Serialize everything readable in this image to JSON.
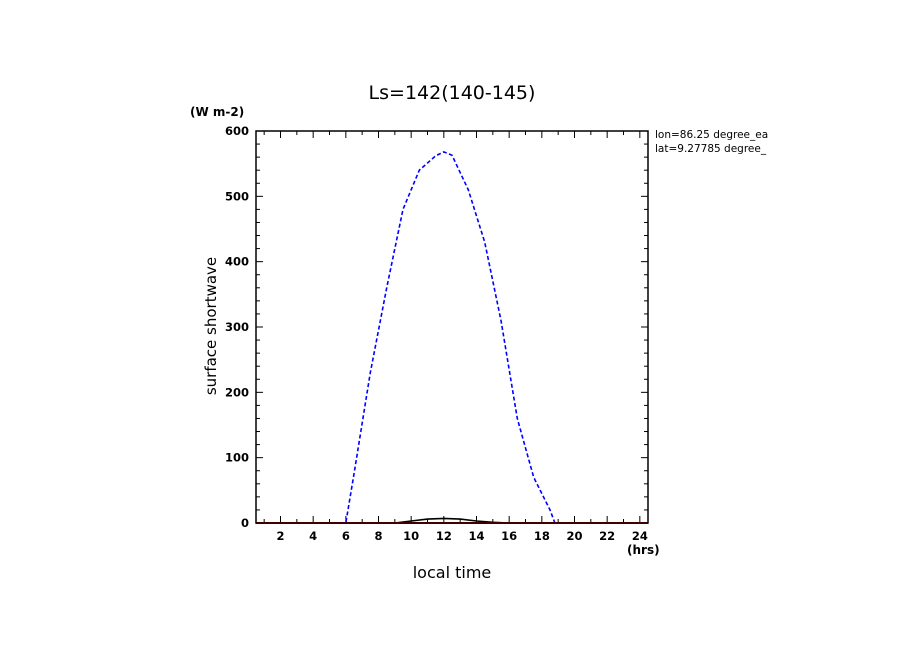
{
  "chart_data": {
    "type": "line",
    "title": "Ls=142(140-145)",
    "xlabel": "local time",
    "xunit": "(hrs)",
    "ylabel": "surface shortwave",
    "yunit": "(W m-2)",
    "xlim": [
      0.5,
      24.5
    ],
    "ylim": [
      0,
      600
    ],
    "xticks": [
      2,
      4,
      6,
      8,
      10,
      12,
      14,
      16,
      18,
      20,
      22,
      24
    ],
    "yticks": [
      0,
      100,
      200,
      300,
      400,
      500,
      600
    ],
    "annotations": [
      "lon=86.25 degree_ea",
      "lat=9.27785 degree_"
    ],
    "series": [
      {
        "color": "#0000ff",
        "style": "dashed",
        "x": [
          0.5,
          1.5,
          2.5,
          3.5,
          4.5,
          5.5,
          6.0,
          6.5,
          7.5,
          8.5,
          9.5,
          10.5,
          11.5,
          12.0,
          12.5,
          13.5,
          14.5,
          15.5,
          16.5,
          17.5,
          18.5,
          18.8,
          19.5,
          20.5,
          21.5,
          22.5,
          23.5,
          24.5
        ],
        "y": [
          0,
          0,
          0,
          0,
          0,
          0,
          0,
          75,
          230,
          360,
          480,
          540,
          562,
          568,
          563,
          510,
          430,
          310,
          160,
          70,
          20,
          0,
          0,
          0,
          0,
          0,
          0,
          0
        ]
      },
      {
        "color": "#000000",
        "style": "solid",
        "x": [
          0.5,
          9.0,
          10.0,
          11.0,
          12.0,
          13.0,
          14.0,
          15.0,
          16.0,
          24.5
        ],
        "y": [
          0,
          0,
          3,
          6,
          7,
          6,
          3,
          1,
          0,
          0
        ]
      },
      {
        "color": "#ff0000",
        "style": "solid",
        "x": [
          0.5,
          24.5
        ],
        "y": [
          0,
          0
        ]
      }
    ]
  }
}
